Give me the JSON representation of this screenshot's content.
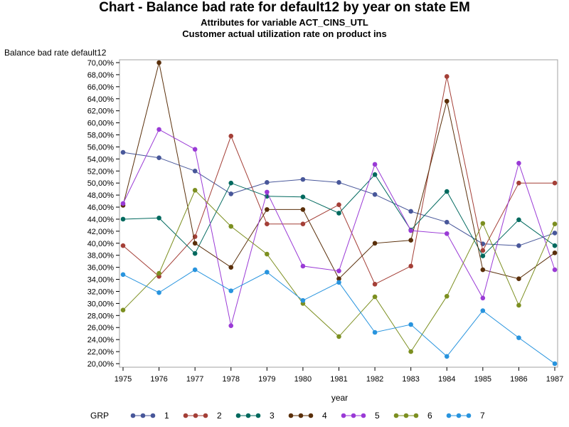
{
  "chart_data": {
    "type": "line",
    "title": "Chart - Balance bad rate for default12 by year on state EM",
    "subtitle_1": "Attributes for variable ACT_CINS_UTL",
    "subtitle_2": "Customer actual utilization rate on product ins",
    "xlabel": "year",
    "ylabel": "Balance bad rate default12",
    "x": [
      1975,
      1976,
      1977,
      1978,
      1979,
      1980,
      1981,
      1982,
      1983,
      1984,
      1985,
      1986,
      1987
    ],
    "x_tick_labels": [
      "1975",
      "1976",
      "1977",
      "1978",
      "1979",
      "1980",
      "1981",
      "1982",
      "1983",
      "1984",
      "1985",
      "1986",
      "1987"
    ],
    "ylim": [
      20,
      70
    ],
    "y_tick_labels": [
      "20,00%",
      "22,00%",
      "24,00%",
      "26,00%",
      "28,00%",
      "30,00%",
      "32,00%",
      "34,00%",
      "36,00%",
      "38,00%",
      "40,00%",
      "42,00%",
      "44,00%",
      "46,00%",
      "48,00%",
      "50,00%",
      "52,00%",
      "54,00%",
      "56,00%",
      "58,00%",
      "60,00%",
      "62,00%",
      "64,00%",
      "66,00%",
      "68,00%",
      "70,00%"
    ],
    "legend_title": "GRP",
    "legend_position": "bottom",
    "series": [
      {
        "name": "1",
        "color": "#48579a",
        "values": [
          55.1,
          54.2,
          52.0,
          48.2,
          50.1,
          50.6,
          50.1,
          48.1,
          45.3,
          43.5,
          39.9,
          39.6,
          41.7
        ]
      },
      {
        "name": "2",
        "color": "#a43f37",
        "values": [
          39.6,
          34.5,
          41.1,
          57.8,
          43.2,
          43.2,
          46.4,
          33.2,
          36.2,
          67.7,
          38.8,
          50.0,
          50.0
        ]
      },
      {
        "name": "3",
        "color": "#00695e",
        "values": [
          44.0,
          44.2,
          38.3,
          50.0,
          47.8,
          47.7,
          45.0,
          51.4,
          42.2,
          48.6,
          37.9,
          43.9,
          39.6
        ]
      },
      {
        "name": "4",
        "color": "#5a2f0a",
        "values": [
          46.3,
          70.0,
          40.0,
          36.0,
          45.6,
          45.6,
          34.1,
          40.0,
          40.5,
          63.6,
          35.6,
          34.1,
          38.4
        ]
      },
      {
        "name": "5",
        "color": "#9a3ad6",
        "values": [
          46.6,
          58.9,
          55.6,
          26.3,
          48.5,
          36.2,
          35.4,
          53.1,
          42.1,
          41.6,
          30.9,
          53.3,
          35.6
        ]
      },
      {
        "name": "6",
        "color": "#7c8f20",
        "values": [
          28.9,
          35.0,
          48.8,
          42.8,
          38.2,
          30.0,
          24.5,
          31.1,
          22.0,
          31.2,
          43.3,
          29.7,
          43.2
        ]
      },
      {
        "name": "7",
        "color": "#2894de",
        "values": [
          34.8,
          31.8,
          35.6,
          32.1,
          35.2,
          30.5,
          33.5,
          25.2,
          26.5,
          21.2,
          28.8,
          24.3,
          20.0
        ]
      }
    ],
    "grid": false
  }
}
